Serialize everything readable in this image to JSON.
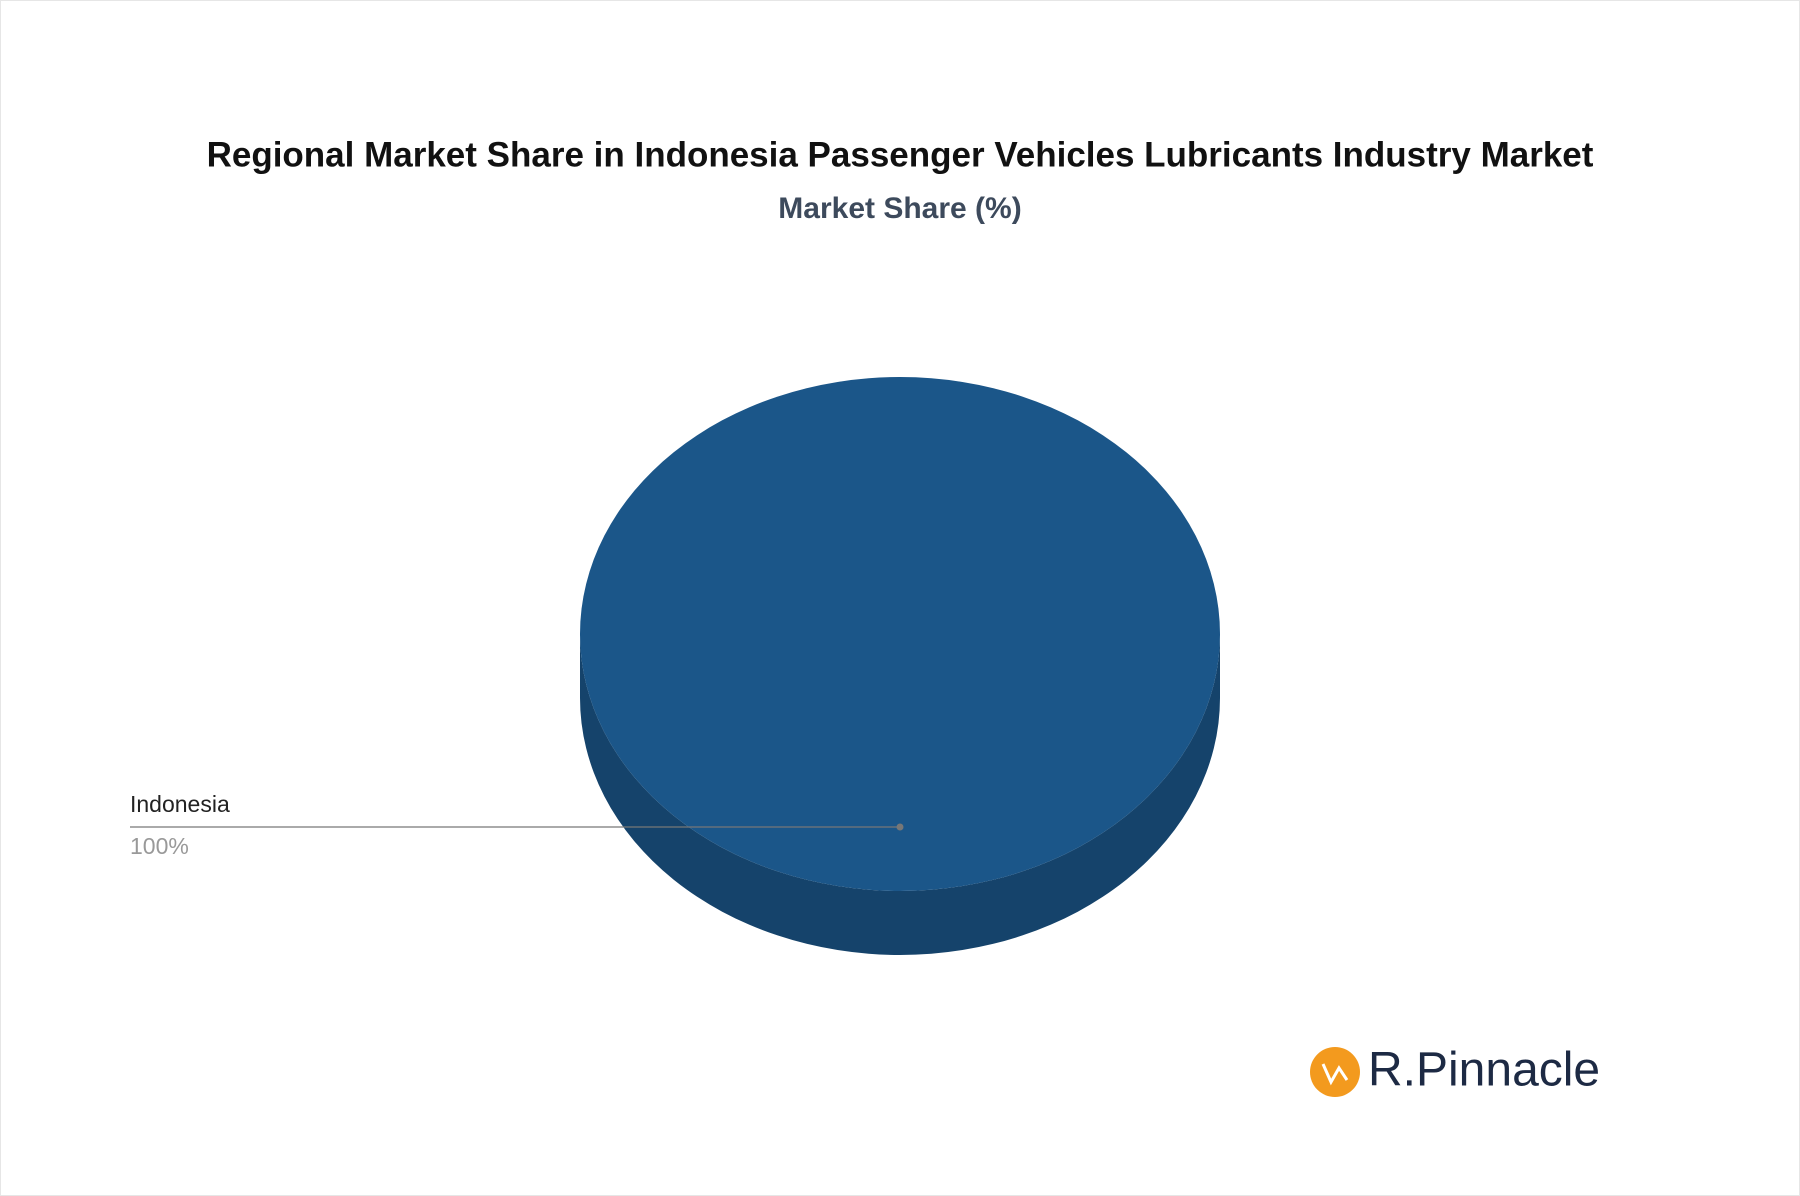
{
  "chart_data": {
    "type": "pie",
    "title": "Regional Market Share in Indonesia Passenger Vehicles Lubricants Industry Market",
    "subtitle": "Market Share (%)",
    "categories": [
      "Indonesia"
    ],
    "values": [
      100
    ],
    "value_labels": [
      "100%"
    ],
    "colors": [
      "#1b5689"
    ]
  },
  "logo": "R.Pinnacle"
}
